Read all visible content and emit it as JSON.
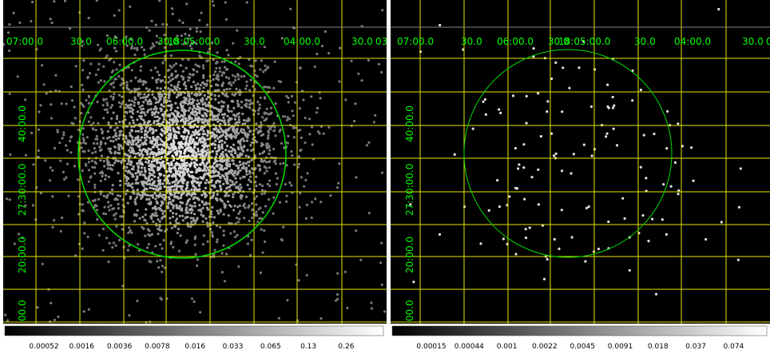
{
  "panels": [
    {
      "ra_labels": [
        "07:00.0",
        "30.0",
        "06:00.0",
        "30.0",
        "18:05:00.0",
        "30.0",
        "04:00.0",
        "30.0",
        "03:"
      ],
      "dec_labels": [
        "40:00.0",
        "27:30:00.0",
        "20:00.0",
        "00.0"
      ],
      "colorbar_labels": [
        "0.00052",
        "0.0016",
        "0.0036",
        "0.0078",
        "0.016",
        "0.033",
        "0.065",
        "0.13",
        "0.26"
      ]
    },
    {
      "ra_labels": [
        "07:00.0",
        "30.0",
        "06:00.0",
        "30.0",
        "18:05:00.0",
        "30.0",
        "04:00.0",
        "30.0",
        "03:"
      ],
      "dec_labels": [
        "40:00.0",
        "27:30:00.0",
        "20:00.0",
        "00.0"
      ],
      "colorbar_labels": [
        "0.00015",
        "0.00044",
        "0.001",
        "0.0022",
        "0.0045",
        "0.0091",
        "0.018",
        "0.037",
        "0.074"
      ]
    }
  ]
}
